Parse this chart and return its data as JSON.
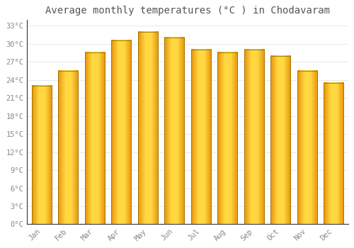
{
  "months": [
    "Jan",
    "Feb",
    "Mar",
    "Apr",
    "May",
    "Jun",
    "Jul",
    "Aug",
    "Sep",
    "Oct",
    "Nov",
    "Dec"
  ],
  "values": [
    23.0,
    25.5,
    28.5,
    30.5,
    32.0,
    31.0,
    29.0,
    28.5,
    29.0,
    28.0,
    25.5,
    23.5
  ],
  "bar_color_center": "#FFD740",
  "bar_color_edge": "#F5A623",
  "bar_border_color": "#B8860B",
  "title": "Average monthly temperatures (°C ) in Chodavaram",
  "title_fontsize": 10,
  "ylim": [
    0,
    34
  ],
  "ytick_interval": 3,
  "background_color": "#ffffff",
  "grid_color": "#e8e8e8",
  "tick_label_color": "#888888",
  "tick_fontsize": 7.5,
  "title_color": "#555555"
}
